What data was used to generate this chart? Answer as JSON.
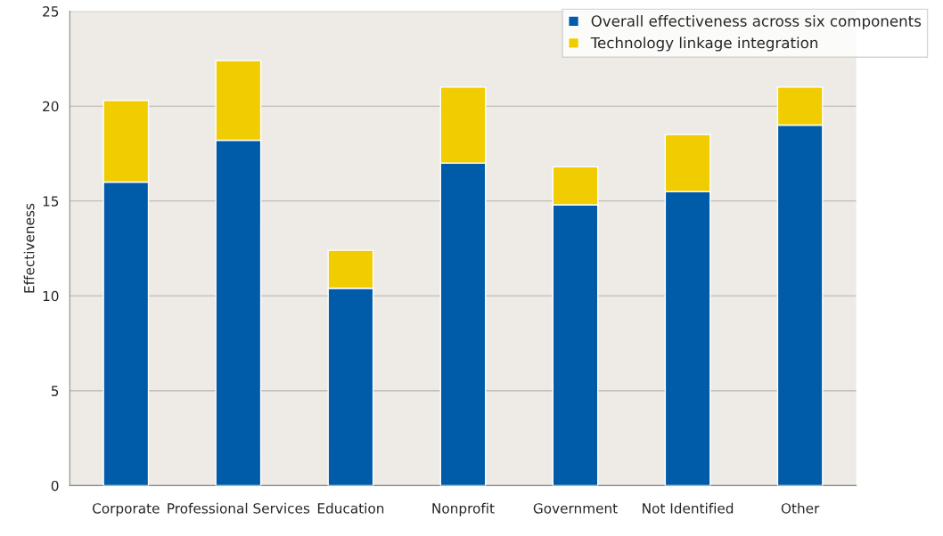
{
  "chart_data": {
    "type": "bar",
    "ylabel": "Effectiveness",
    "stacked": true,
    "legend": "top right",
    "grid": "y",
    "categories": [
      "Corporate",
      "Professional Services",
      "Education",
      "Nonprofit",
      "Government",
      "Not Identified",
      "Other"
    ],
    "series": [
      {
        "name": "Overall effectiveness across six components",
        "color": "#005ca9",
        "values": [
          16.0,
          18.2,
          10.4,
          17.0,
          14.8,
          15.5,
          19.0
        ]
      },
      {
        "name": "Technology linkage integration",
        "color": "#f0cc00",
        "values": [
          4.3,
          4.2,
          2.0,
          4.0,
          2.0,
          3.0,
          2.0
        ]
      }
    ],
    "ylim": [
      0,
      25
    ],
    "yticks": [
      0,
      5,
      10,
      15,
      20,
      25
    ]
  }
}
